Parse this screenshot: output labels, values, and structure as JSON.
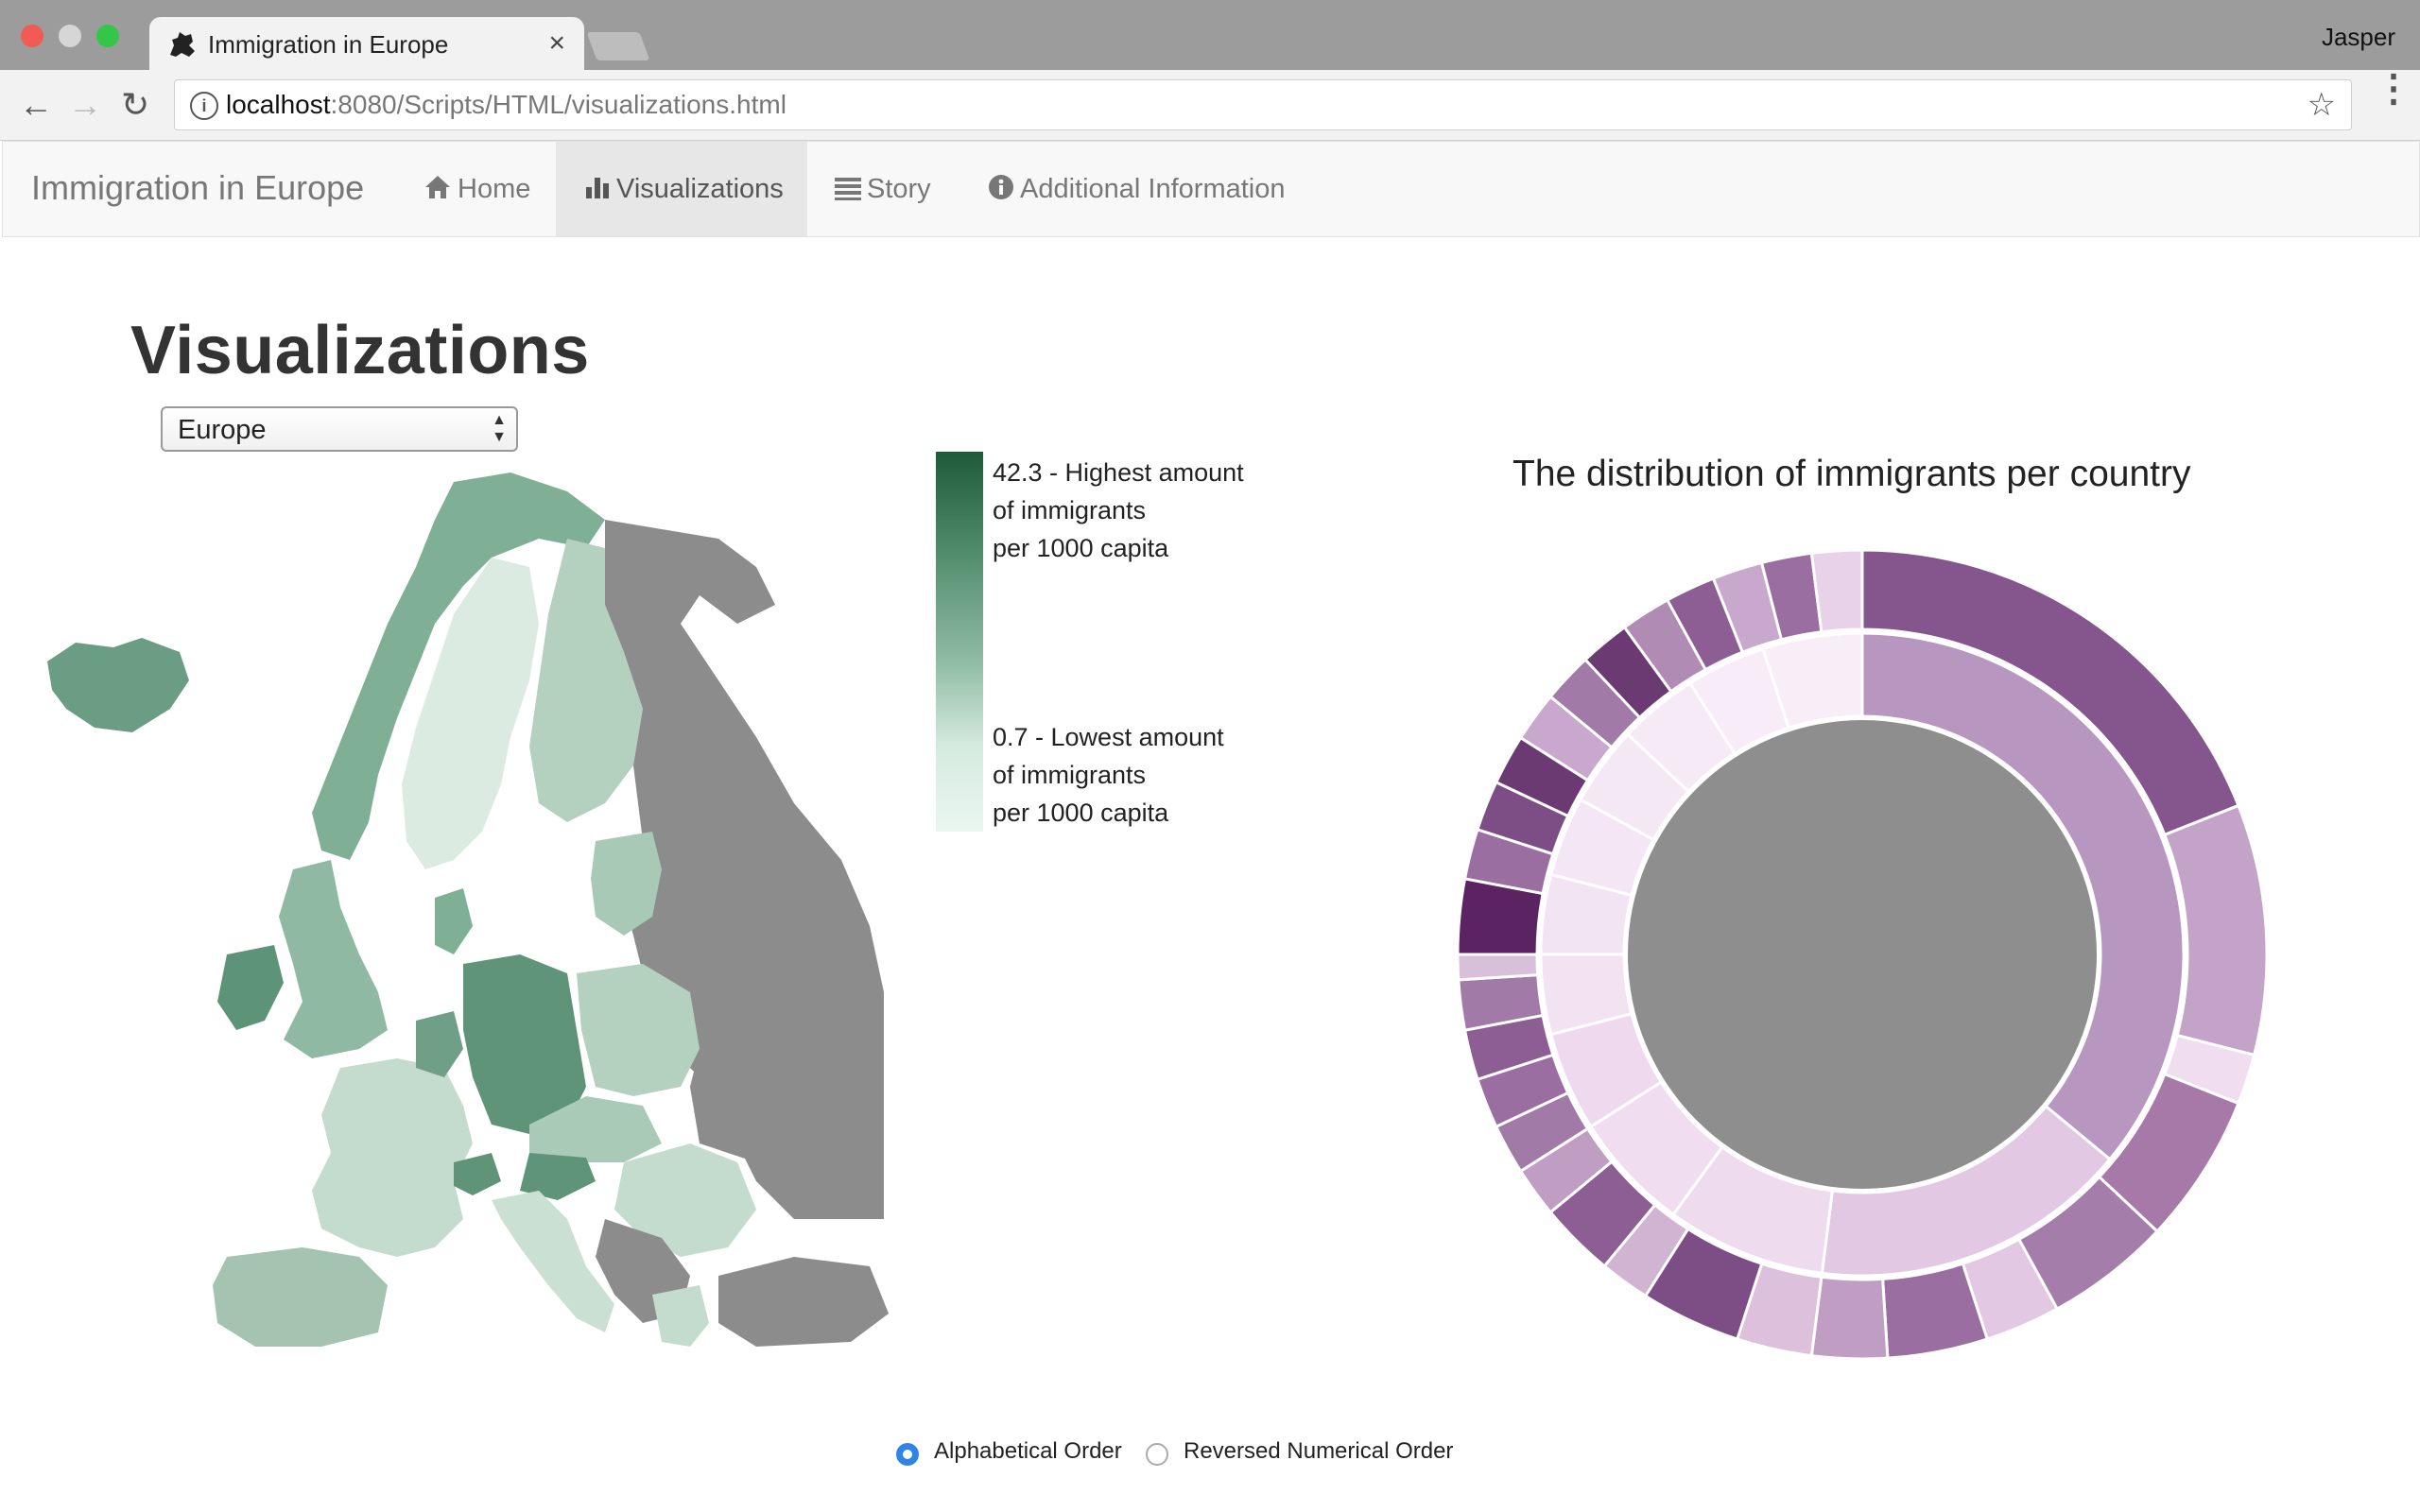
{
  "browser": {
    "tab_title": "Immigration in Europe",
    "tab_close": "×",
    "profile": "Jasper",
    "url_host": "localhost",
    "url_rest": ":8080/Scripts/HTML/visualizations.html",
    "info_glyph": "i",
    "back_glyph": "←",
    "forward_glyph": "→",
    "reload_glyph": "↻",
    "star_glyph": "☆",
    "menu_glyph": "⋮"
  },
  "navbar": {
    "brand": "Immigration in Europe",
    "items": [
      {
        "label": "Home",
        "icon": "home-icon"
      },
      {
        "label": "Visualizations",
        "icon": "bar-chart-icon",
        "active": true
      },
      {
        "label": "Story",
        "icon": "list-icon"
      },
      {
        "label": "Additional Information",
        "icon": "info-circle-icon"
      }
    ]
  },
  "page": {
    "title": "Visualizations",
    "region_select": {
      "value": "Europe",
      "arrows": "▲\n▼"
    }
  },
  "map_legend": {
    "high": [
      "42.3 - Highest amount",
      "of immigrants",
      "per 1000 capita"
    ],
    "low": [
      "0.7 - Lowest amount",
      "of immigrants",
      "per 1000 capita"
    ]
  },
  "sunburst": {
    "title": "The distribution of immigrants per country"
  },
  "sort_options": [
    {
      "label": "Alphabetical Order",
      "checked": true
    },
    {
      "label": "Reversed Numerical Order",
      "checked": false
    }
  ],
  "colors": {
    "map_high": "#1f5a3a",
    "map_low": "#eaf6ef",
    "no_data": "#8c8c8c",
    "sunburst_dark": "#5c2363",
    "sunburst_light": "#f6e8f6",
    "radio_accent": "#2f84e8"
  }
}
